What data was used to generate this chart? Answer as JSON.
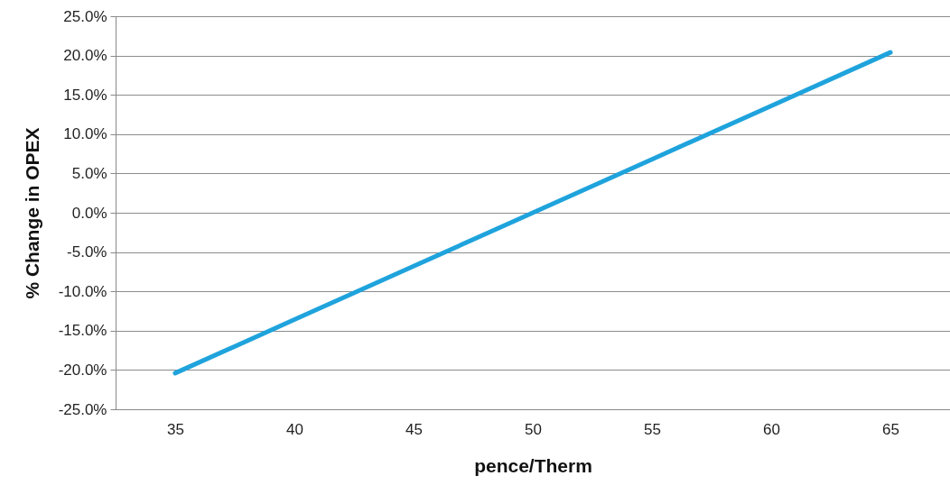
{
  "chart_data": {
    "type": "line",
    "xlabel": "pence/Therm",
    "ylabel": "% Change in OPEX",
    "categories": [
      "35",
      "40",
      "45",
      "50",
      "55",
      "60",
      "65"
    ],
    "series": [
      {
        "color": "#1fa3dc",
        "values": [
          -20.4,
          -13.6,
          -6.8,
          0,
          6.8,
          13.6,
          20.4
        ]
      }
    ],
    "ylim": [
      -25,
      25
    ],
    "yticks": [
      {
        "value": -25,
        "label": "-25.0%"
      },
      {
        "value": -20,
        "label": "-20.0%"
      },
      {
        "value": -15,
        "label": "-15.0%"
      },
      {
        "value": -10,
        "label": "-10.0%"
      },
      {
        "value": -5,
        "label": "-5.0%"
      },
      {
        "value": 0,
        "label": "0.0%"
      },
      {
        "value": 5,
        "label": "5.0%"
      },
      {
        "value": 10,
        "label": "10.0%"
      },
      {
        "value": 15,
        "label": "15.0%"
      },
      {
        "value": 20,
        "label": "20.0%"
      },
      {
        "value": 25,
        "label": "25.0%"
      }
    ],
    "grid": "y",
    "line_style": "solid"
  }
}
